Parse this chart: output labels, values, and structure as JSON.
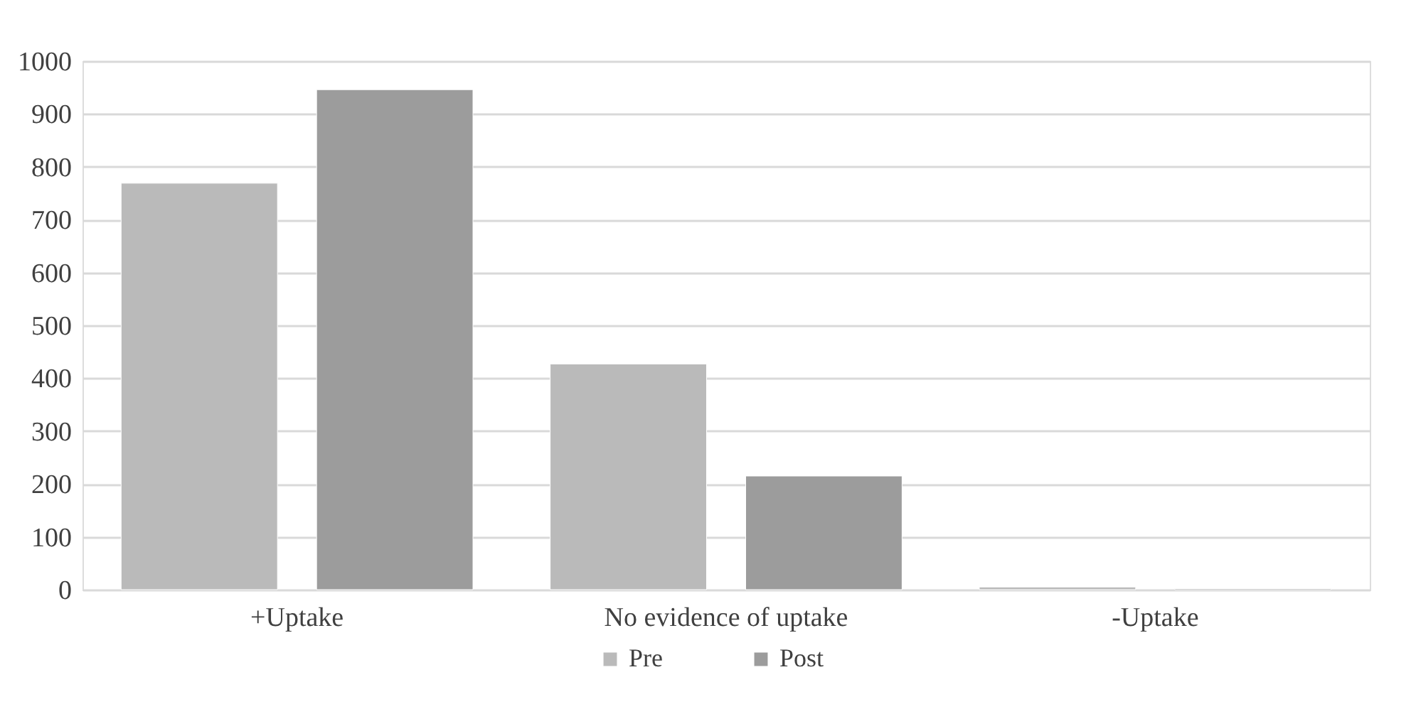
{
  "chart_data": {
    "type": "bar",
    "categories": [
      "+Uptake",
      "No evidence of uptake",
      "-Uptake"
    ],
    "series": [
      {
        "name": "Pre",
        "color": "#bababa",
        "values": [
          769,
          427,
          5
        ]
      },
      {
        "name": "Post",
        "color": "#9c9c9c",
        "values": [
          946,
          215,
          2
        ]
      }
    ],
    "ylim": [
      0,
      1000
    ],
    "yticks": [
      0,
      100,
      200,
      300,
      400,
      500,
      600,
      700,
      800,
      900,
      1000
    ],
    "grid": "y",
    "legend": "bottom"
  }
}
